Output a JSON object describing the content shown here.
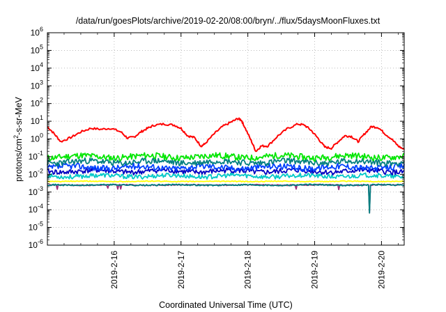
{
  "chart_data": {
    "type": "line",
    "title": "/data/run/goesPlots/archive/2019-02-20/08:00/bryn/../flux/5daysMoonFluxes.txt",
    "xlabel": "Coordinated Universal Time (UTC)",
    "ylabel": {
      "pre": "protons/cm",
      "sup": "2",
      "post": "-s-sr-MeV"
    },
    "yscale": "log",
    "ylim_exp": [
      -6,
      6
    ],
    "y_ticks": [
      {
        "base": "10",
        "exp": "6"
      },
      {
        "base": "10",
        "exp": "5"
      },
      {
        "base": "10",
        "exp": "4"
      },
      {
        "base": "10",
        "exp": "3"
      },
      {
        "base": "10",
        "exp": "2"
      },
      {
        "base": "10",
        "exp": "1"
      },
      {
        "base": "10",
        "exp": "0"
      },
      {
        "base": "10",
        "exp": "-1"
      },
      {
        "base": "10",
        "exp": "-2"
      },
      {
        "base": "10",
        "exp": "-3"
      },
      {
        "base": "10",
        "exp": "-4"
      },
      {
        "base": "10",
        "exp": "-5"
      },
      {
        "base": "10",
        "exp": "-6"
      }
    ],
    "xlim_days": [
      15.0,
      20.34
    ],
    "x_ticks": [
      {
        "label": "2019-2-16",
        "day": 16
      },
      {
        "label": "2019-2-17",
        "day": 17
      },
      {
        "label": "2019-2-18",
        "day": 18
      },
      {
        "label": "2019-2-19",
        "day": 19
      },
      {
        "label": "2019-2-20",
        "day": 20
      }
    ],
    "grid": true,
    "series": [
      {
        "color": "#ff0000",
        "description": "highest flux, diurnal humps",
        "x": [
          15.0,
          15.1,
          15.2,
          15.35,
          15.5,
          15.65,
          15.8,
          15.95,
          16.1,
          16.2,
          16.3,
          16.4,
          16.5,
          16.6,
          16.75,
          16.9,
          17.0,
          17.1,
          17.2,
          17.3,
          17.35,
          17.5,
          17.62,
          17.75,
          17.85,
          17.9,
          17.95,
          18.05,
          18.12,
          18.2,
          18.3,
          18.45,
          18.6,
          18.75,
          18.85,
          18.95,
          19.05,
          19.15,
          19.25,
          19.35,
          19.45,
          19.55,
          19.65,
          19.75,
          19.85,
          19.95,
          20.05,
          20.15,
          20.25,
          20.34
        ],
        "y": [
          5,
          2,
          0.7,
          1.2,
          2.5,
          4,
          3.5,
          4,
          2.5,
          1.1,
          1.3,
          2.5,
          4,
          6,
          7,
          6,
          4,
          1.5,
          1.2,
          0.4,
          0.5,
          2,
          5,
          9,
          14,
          12,
          5,
          0.8,
          0.2,
          0.4,
          0.4,
          1.5,
          4,
          7,
          6,
          3,
          1.1,
          0.35,
          0.3,
          0.7,
          1.5,
          1.4,
          0.7,
          2,
          5,
          4.5,
          2,
          1,
          0.4,
          0.25
        ]
      },
      {
        "color": "#00e600",
        "description": "~1e-1 band",
        "base": 0.1,
        "noise": 0.35,
        "seed": 11
      },
      {
        "color": "#007f7f",
        "description": "~5e-2 band",
        "base": 0.05,
        "noise": 0.35,
        "seed": 23
      },
      {
        "color": "#0040ff",
        "description": "~2.5e-2 band",
        "base": 0.025,
        "noise": 0.35,
        "seed": 37
      },
      {
        "color": "#0000c0",
        "description": "~1.5e-2 band",
        "base": 0.015,
        "noise": 0.3,
        "seed": 41
      },
      {
        "color": "#00c8c8",
        "description": "~8e-3 band",
        "base": 0.008,
        "noise": 0.25,
        "seed": 53
      },
      {
        "color": "#ffff00",
        "description": "~4e-3 flat",
        "base": 0.004,
        "noise": 0.05,
        "seed": 61
      },
      {
        "color": "#008080",
        "description": "~2.5e-3 flat",
        "base": 0.0025,
        "noise": 0.08,
        "seed": 71,
        "dips": [
          {
            "day": 19.82,
            "value": 5e-05
          }
        ]
      },
      {
        "color": "#a0307a",
        "description": "~2.5e-3 flat with dips",
        "base": 0.0025,
        "noise": 0.06,
        "seed": 83,
        "dips": [
          {
            "day": 15.15,
            "value": 0.0013
          },
          {
            "day": 15.9,
            "value": 0.0012
          },
          {
            "day": 16.05,
            "value": 0.0012
          },
          {
            "day": 16.1,
            "value": 0.0013
          },
          {
            "day": 18.72,
            "value": 0.0012
          },
          {
            "day": 19.36,
            "value": 0.0013
          },
          {
            "day": 19.82,
            "value": 5e-05
          }
        ]
      }
    ]
  }
}
